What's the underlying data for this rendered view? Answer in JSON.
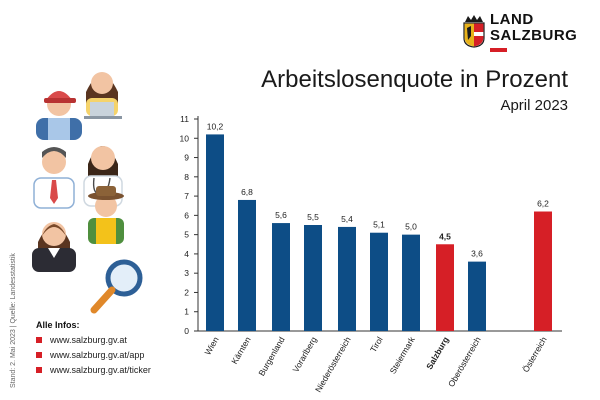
{
  "brand": {
    "line1": "LAND",
    "line2": "SALZBURG",
    "accent_color": "#d61f26"
  },
  "header": {
    "title": "Arbeitslosenquote in Prozent",
    "subtitle": "April 2023"
  },
  "side_note": "Stand: 2. Mai 2023 | Quelle: Landesstatistik",
  "infos": {
    "title": "Alle Infos:",
    "bullet_color": "#d61f26",
    "links": [
      "www.salzburg.gv.at",
      "www.salzburg.gv.at/app",
      "www.salzburg.gv.at/ticker"
    ]
  },
  "illustration": {
    "icons": [
      "worker-cap-icon",
      "office-woman-laptop-icon",
      "businessman-tie-icon",
      "doctor-stethoscope-icon",
      "businesswoman-icon",
      "farmer-hat-icon",
      "magnifier-icon"
    ]
  },
  "chart_data": {
    "type": "bar",
    "title": "Arbeitslosenquote in Prozent",
    "subtitle": "April 2023",
    "categories": [
      "Wien",
      "Kärnten",
      "Burgenland",
      "Vorarlberg",
      "Niederösterreich",
      "Tirol",
      "Steiermark",
      "Salzburg",
      "Oberösterreich",
      "Österreich"
    ],
    "values": [
      10.2,
      6.8,
      5.6,
      5.5,
      5.4,
      5.1,
      5.0,
      4.5,
      3.6,
      6.2
    ],
    "value_labels": [
      "10,2",
      "6,8",
      "5,6",
      "5,5",
      "5,4",
      "5,1",
      "5,0",
      "4,5",
      "3,6",
      "6,2"
    ],
    "highlight": [
      "Salzburg",
      "Österreich"
    ],
    "colors": {
      "default": "#0d4d86",
      "highlight": "#d61f26"
    },
    "ylim": [
      0,
      11
    ],
    "yticks": [
      "0",
      "1",
      "2",
      "3",
      "4",
      "5",
      "6",
      "7",
      "8",
      "9",
      "10",
      "11"
    ],
    "grid": false,
    "xlabel": "",
    "ylabel": ""
  }
}
